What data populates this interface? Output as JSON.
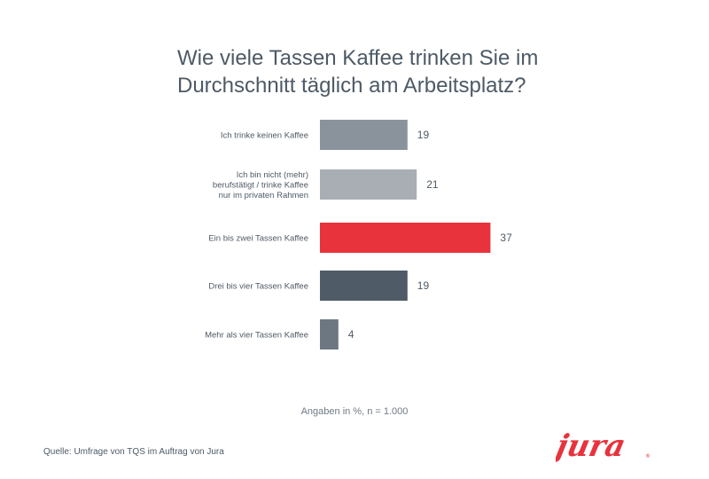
{
  "title_line1": "Wie viele Tassen Kaffee trinken Sie im",
  "title_line2": "Durchschnitt täglich am Arbeitsplatz?",
  "note": "Angaben in %, n = 1.000",
  "source": "Quelle: Umfrage von TQS im Auftrag von Jura",
  "logo_text": "jura",
  "chart_data": {
    "type": "bar",
    "orientation": "horizontal",
    "title": "Wie viele Tassen Kaffee trinken Sie im Durchschnitt täglich am Arbeitsplatz?",
    "categories": [
      [
        "Ich trinke keinen Kaffee"
      ],
      [
        "Ich bin nicht (mehr)",
        "berufstätigt / trinke Kaffee",
        "nur im privaten Rahmen"
      ],
      [
        "Ein bis zwei Tassen Kaffee"
      ],
      [
        "Drei bis vier Tassen Kaffee"
      ],
      [
        "Mehr als vier Tassen Kaffee"
      ]
    ],
    "values": [
      19,
      21,
      37,
      19,
      4
    ],
    "colors": [
      "#8a939c",
      "#a8aeb4",
      "#e8323c",
      "#4f5b67",
      "#6c7781"
    ],
    "unit": "%",
    "grid": false,
    "legend": "none"
  }
}
